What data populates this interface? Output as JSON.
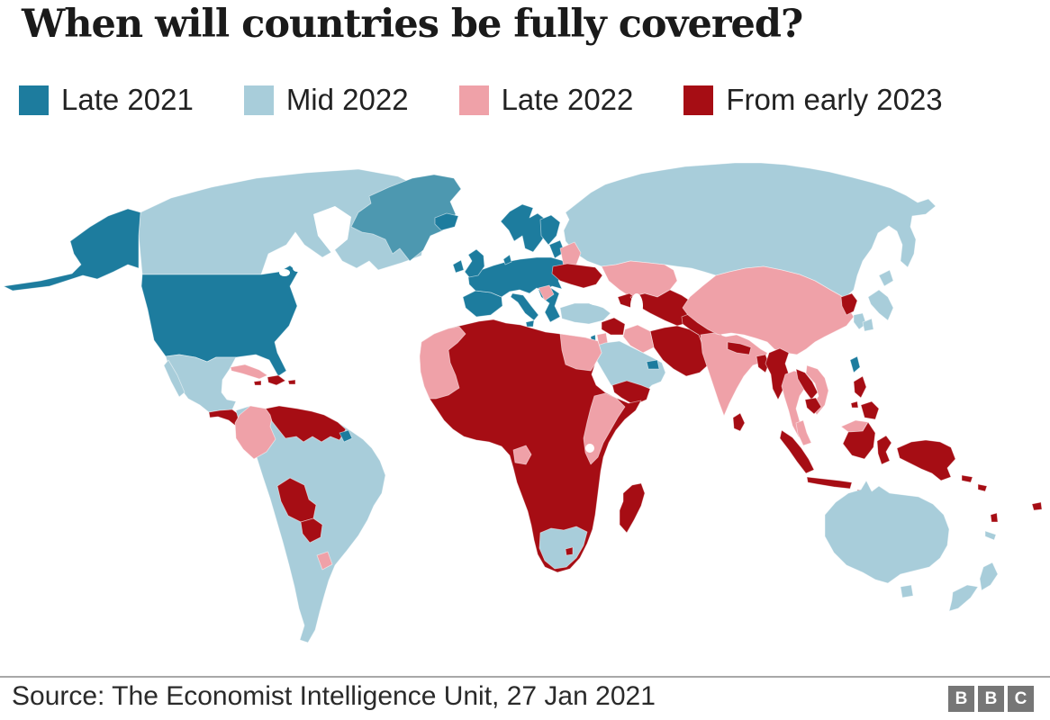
{
  "title": "When will countries be fully covered?",
  "legend": {
    "items": [
      {
        "label": "Late 2021",
        "key": "late2021",
        "color": "#1d7c9e"
      },
      {
        "label": "Mid 2022",
        "key": "mid2022",
        "color": "#a8cdda"
      },
      {
        "label": "Late 2022",
        "key": "late2022",
        "color": "#efa1a8"
      },
      {
        "label": "From early 2023",
        "key": "early2023",
        "color": "#a60d14"
      }
    ]
  },
  "map": {
    "colors": {
      "late2021": "#1d7c9e",
      "mid2022": "#a8cdda",
      "late2022": "#efa1a8",
      "early2023": "#a60d14",
      "water": "#ffffff"
    },
    "stroke": "rgba(255,255,255,0.55)",
    "regions": [
      {
        "name": "russia",
        "category": "mid2022"
      },
      {
        "name": "canada",
        "category": "mid2022"
      },
      {
        "name": "alaska",
        "category": "late2021"
      },
      {
        "name": "greenland",
        "category": "late2021",
        "color": "#4d98b0"
      },
      {
        "name": "iceland",
        "category": "late2021"
      },
      {
        "name": "usa",
        "category": "late2021"
      },
      {
        "name": "mexico",
        "category": "mid2022"
      },
      {
        "name": "baja",
        "category": "mid2022"
      },
      {
        "name": "central-america",
        "category": "early2023"
      },
      {
        "name": "cuba",
        "category": "late2022"
      },
      {
        "name": "hispaniola",
        "category": "early2023"
      },
      {
        "name": "jamaica",
        "category": "early2023"
      },
      {
        "name": "puerto-rico",
        "category": "early2023"
      },
      {
        "name": "south-america",
        "category": "mid2022"
      },
      {
        "name": "colombia-ecuador",
        "category": "late2022"
      },
      {
        "name": "venezuela-guyanas",
        "category": "early2023"
      },
      {
        "name": "french-guiana",
        "category": "late2021"
      },
      {
        "name": "bolivia",
        "category": "early2023"
      },
      {
        "name": "paraguay",
        "category": "early2023"
      },
      {
        "name": "uruguay",
        "category": "late2022"
      },
      {
        "name": "iberia",
        "category": "late2021"
      },
      {
        "name": "europe-main",
        "category": "late2021"
      },
      {
        "name": "italy",
        "category": "late2021"
      },
      {
        "name": "sicily",
        "category": "late2021"
      },
      {
        "name": "balkans",
        "category": "late2021"
      },
      {
        "name": "uk",
        "category": "late2021"
      },
      {
        "name": "ireland",
        "category": "late2021"
      },
      {
        "name": "scandinavia",
        "category": "late2021"
      },
      {
        "name": "finland",
        "category": "late2021"
      },
      {
        "name": "denmark",
        "category": "late2021"
      },
      {
        "name": "baltics",
        "category": "late2021"
      },
      {
        "name": "serbia",
        "category": "late2022"
      },
      {
        "name": "belarus",
        "category": "late2022"
      },
      {
        "name": "ukraine",
        "category": "early2023"
      },
      {
        "name": "kazakhstan",
        "category": "late2022"
      },
      {
        "name": "caucasus",
        "category": "early2023"
      },
      {
        "name": "central-asia",
        "category": "early2023"
      },
      {
        "name": "iran",
        "category": "early2023"
      },
      {
        "name": "afghanistan-pakistan",
        "category": "early2023"
      },
      {
        "name": "iraq",
        "category": "late2022"
      },
      {
        "name": "syria",
        "category": "early2023"
      },
      {
        "name": "turkey",
        "category": "mid2022"
      },
      {
        "name": "israel",
        "category": "late2021"
      },
      {
        "name": "jordan",
        "category": "late2022"
      },
      {
        "name": "arabia",
        "category": "mid2022"
      },
      {
        "name": "uae",
        "category": "late2021"
      },
      {
        "name": "yemen",
        "category": "early2023"
      },
      {
        "name": "africa",
        "category": "early2023"
      },
      {
        "name": "nw-africa",
        "category": "late2022"
      },
      {
        "name": "egypt",
        "category": "late2022"
      },
      {
        "name": "ethiopia-kenya",
        "category": "late2022"
      },
      {
        "name": "gabon",
        "category": "late2022"
      },
      {
        "name": "south-africa",
        "category": "mid2022"
      },
      {
        "name": "lesotho",
        "category": "early2023"
      },
      {
        "name": "madagascar",
        "category": "early2023"
      },
      {
        "name": "china-mongolia",
        "category": "late2022"
      },
      {
        "name": "india",
        "category": "late2022"
      },
      {
        "name": "nepal",
        "category": "early2023"
      },
      {
        "name": "bangladesh",
        "category": "early2023"
      },
      {
        "name": "sri-lanka",
        "category": "early2023"
      },
      {
        "name": "myanmar",
        "category": "early2023"
      },
      {
        "name": "thailand",
        "category": "late2022"
      },
      {
        "name": "laos",
        "category": "early2023"
      },
      {
        "name": "vietnam",
        "category": "late2022"
      },
      {
        "name": "cambodia",
        "category": "early2023"
      },
      {
        "name": "malay-peninsula",
        "category": "late2022"
      },
      {
        "name": "borneo-malaysia",
        "category": "late2022"
      },
      {
        "name": "borneo-indonesia",
        "category": "early2023"
      },
      {
        "name": "sumatra",
        "category": "early2023"
      },
      {
        "name": "java",
        "category": "early2023"
      },
      {
        "name": "sulawesi",
        "category": "early2023"
      },
      {
        "name": "lesser-sunda",
        "category": "early2023"
      },
      {
        "name": "lesser-sunda-2",
        "category": "early2023"
      },
      {
        "name": "new-guinea",
        "category": "early2023"
      },
      {
        "name": "philippines-luzon",
        "category": "early2023"
      },
      {
        "name": "philippines-mindanao",
        "category": "early2023"
      },
      {
        "name": "philippines-visayas",
        "category": "early2023"
      },
      {
        "name": "taiwan",
        "category": "late2021"
      },
      {
        "name": "north-korea",
        "category": "early2023"
      },
      {
        "name": "south-korea",
        "category": "mid2022"
      },
      {
        "name": "japan-hokkaido",
        "category": "mid2022"
      },
      {
        "name": "japan-honshu",
        "category": "mid2022"
      },
      {
        "name": "japan-kyushu",
        "category": "mid2022"
      },
      {
        "name": "australia",
        "category": "mid2022"
      },
      {
        "name": "tasmania",
        "category": "mid2022"
      },
      {
        "name": "nz-north",
        "category": "mid2022"
      },
      {
        "name": "nz-south",
        "category": "mid2022"
      },
      {
        "name": "new-caledonia",
        "category": "mid2022"
      },
      {
        "name": "fiji",
        "category": "early2023"
      },
      {
        "name": "vanuatu",
        "category": "early2023"
      },
      {
        "name": "solomon-1",
        "category": "early2023"
      },
      {
        "name": "solomon-2",
        "category": "early2023"
      },
      {
        "name": "hudson-bay",
        "category": "water"
      },
      {
        "name": "great-lakes",
        "category": "water"
      },
      {
        "name": "black-sea",
        "category": "water"
      },
      {
        "name": "caspian-sea",
        "category": "water"
      },
      {
        "name": "lake-victoria",
        "category": "water"
      }
    ]
  },
  "footer": {
    "source": "Source: The Economist Intelligence Unit, 27 Jan 2021",
    "bbc_letters": [
      "B",
      "B",
      "C"
    ],
    "bbc_color": "#767676"
  }
}
